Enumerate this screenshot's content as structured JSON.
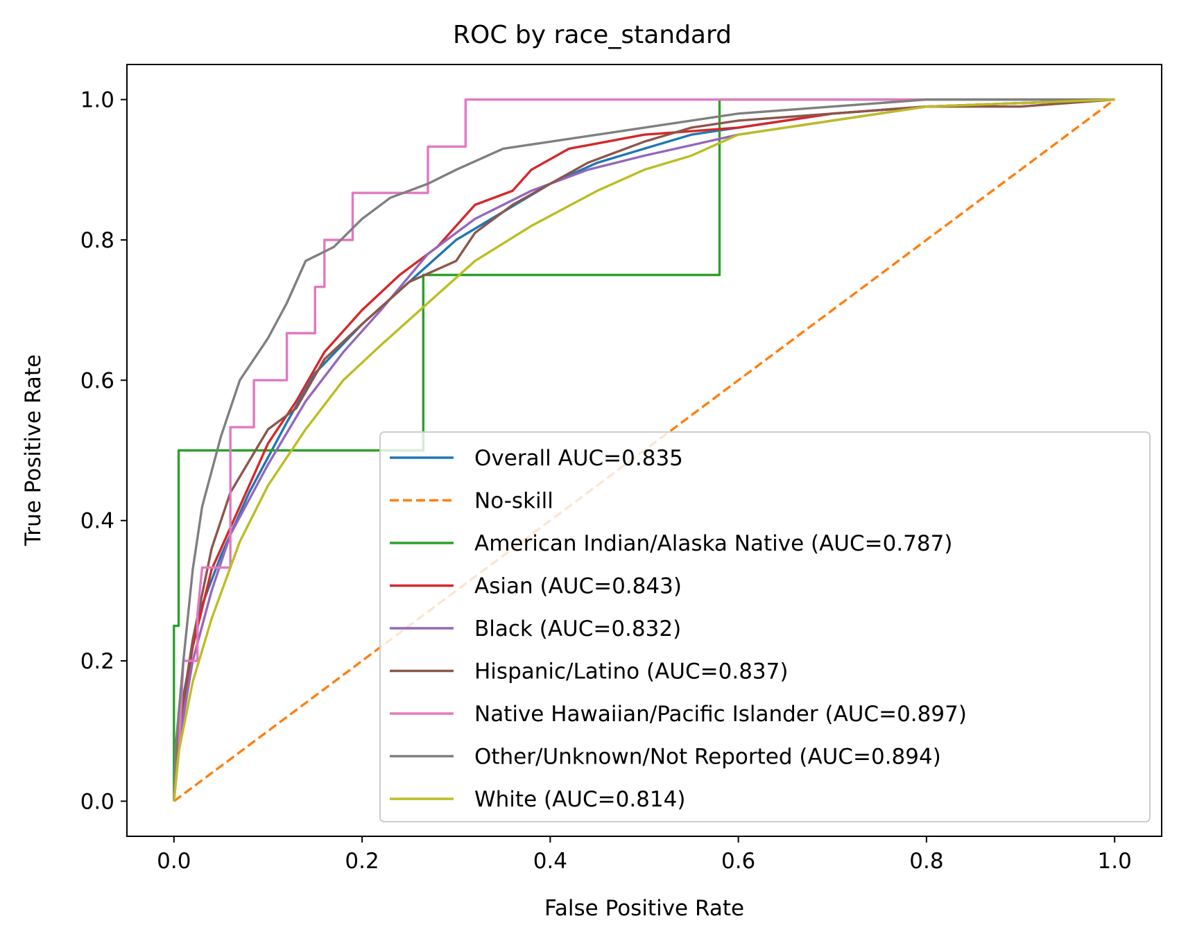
{
  "chart_data": {
    "type": "line",
    "title": "ROC by race_standard",
    "xlabel": "False Positive Rate",
    "ylabel": "True Positive Rate",
    "xlim": [
      -0.05,
      1.05
    ],
    "ylim": [
      -0.05,
      1.05
    ],
    "xticks": [
      0.0,
      0.2,
      0.4,
      0.6,
      0.8,
      1.0
    ],
    "yticks": [
      0.0,
      0.2,
      0.4,
      0.6,
      0.8,
      1.0
    ],
    "xtick_labels": [
      "0.0",
      "0.2",
      "0.4",
      "0.6",
      "0.8",
      "1.0"
    ],
    "ytick_labels": [
      "0.0",
      "0.2",
      "0.4",
      "0.6",
      "0.8",
      "1.0"
    ],
    "grid": false,
    "legend_position": "lower right",
    "series": [
      {
        "name": "Overall AUC=0.835",
        "color": "#1f77b4",
        "dash": "solid",
        "points": [
          [
            0,
            0
          ],
          [
            0.003,
            0.06
          ],
          [
            0.01,
            0.15
          ],
          [
            0.02,
            0.22
          ],
          [
            0.03,
            0.28
          ],
          [
            0.05,
            0.35
          ],
          [
            0.08,
            0.44
          ],
          [
            0.12,
            0.54
          ],
          [
            0.15,
            0.61
          ],
          [
            0.2,
            0.68
          ],
          [
            0.25,
            0.74
          ],
          [
            0.3,
            0.8
          ],
          [
            0.35,
            0.84
          ],
          [
            0.4,
            0.88
          ],
          [
            0.45,
            0.91
          ],
          [
            0.5,
            0.93
          ],
          [
            0.55,
            0.95
          ],
          [
            0.6,
            0.96
          ],
          [
            0.7,
            0.98
          ],
          [
            0.8,
            0.99
          ],
          [
            0.9,
            0.995
          ],
          [
            1.0,
            1.0
          ]
        ]
      },
      {
        "name": "No-skill",
        "color": "#ff7f0e",
        "dash": "dashed",
        "points": [
          [
            0,
            0
          ],
          [
            1,
            1
          ]
        ]
      },
      {
        "name": "American Indian/Alaska Native (AUC=0.787)",
        "color": "#2ca02c",
        "dash": "solid",
        "points": [
          [
            0,
            0
          ],
          [
            0,
            0.25
          ],
          [
            0.005,
            0.25
          ],
          [
            0.005,
            0.5
          ],
          [
            0.265,
            0.5
          ],
          [
            0.265,
            0.75
          ],
          [
            0.58,
            0.75
          ],
          [
            0.58,
            1.0
          ],
          [
            1.0,
            1.0
          ]
        ]
      },
      {
        "name": "Asian (AUC=0.843)",
        "color": "#d62728",
        "dash": "solid",
        "points": [
          [
            0,
            0
          ],
          [
            0.005,
            0.1
          ],
          [
            0.02,
            0.22
          ],
          [
            0.04,
            0.33
          ],
          [
            0.07,
            0.42
          ],
          [
            0.1,
            0.51
          ],
          [
            0.13,
            0.57
          ],
          [
            0.16,
            0.64
          ],
          [
            0.2,
            0.7
          ],
          [
            0.24,
            0.75
          ],
          [
            0.28,
            0.79
          ],
          [
            0.3,
            0.82
          ],
          [
            0.32,
            0.85
          ],
          [
            0.36,
            0.87
          ],
          [
            0.38,
            0.9
          ],
          [
            0.42,
            0.93
          ],
          [
            0.5,
            0.95
          ],
          [
            0.6,
            0.96
          ],
          [
            0.7,
            0.98
          ],
          [
            0.8,
            0.99
          ],
          [
            0.9,
            0.995
          ],
          [
            1.0,
            1.0
          ]
        ]
      },
      {
        "name": "Black (AUC=0.832)",
        "color": "#9467bd",
        "dash": "solid",
        "points": [
          [
            0,
            0
          ],
          [
            0.005,
            0.08
          ],
          [
            0.02,
            0.2
          ],
          [
            0.04,
            0.3
          ],
          [
            0.06,
            0.38
          ],
          [
            0.1,
            0.48
          ],
          [
            0.14,
            0.57
          ],
          [
            0.18,
            0.64
          ],
          [
            0.22,
            0.7
          ],
          [
            0.27,
            0.78
          ],
          [
            0.32,
            0.83
          ],
          [
            0.38,
            0.87
          ],
          [
            0.44,
            0.9
          ],
          [
            0.5,
            0.92
          ],
          [
            0.6,
            0.95
          ],
          [
            0.7,
            0.97
          ],
          [
            0.8,
            0.99
          ],
          [
            0.9,
            0.995
          ],
          [
            1.0,
            1.0
          ]
        ]
      },
      {
        "name": "Hispanic/Latino (AUC=0.837)",
        "color": "#8c564b",
        "dash": "solid",
        "points": [
          [
            0,
            0
          ],
          [
            0.005,
            0.1
          ],
          [
            0.02,
            0.23
          ],
          [
            0.04,
            0.36
          ],
          [
            0.06,
            0.44
          ],
          [
            0.1,
            0.53
          ],
          [
            0.13,
            0.56
          ],
          [
            0.16,
            0.63
          ],
          [
            0.2,
            0.68
          ],
          [
            0.25,
            0.74
          ],
          [
            0.3,
            0.77
          ],
          [
            0.32,
            0.81
          ],
          [
            0.36,
            0.85
          ],
          [
            0.4,
            0.88
          ],
          [
            0.44,
            0.91
          ],
          [
            0.5,
            0.94
          ],
          [
            0.55,
            0.96
          ],
          [
            0.6,
            0.97
          ],
          [
            0.7,
            0.98
          ],
          [
            0.8,
            0.99
          ],
          [
            0.9,
            0.99
          ],
          [
            1.0,
            1.0
          ]
        ]
      },
      {
        "name": "Native Hawaiian/Pacific Islander (AUC=0.897)",
        "color": "#e377c2",
        "dash": "solid",
        "points": [
          [
            0,
            0
          ],
          [
            0.005,
            0.067
          ],
          [
            0.01,
            0.2
          ],
          [
            0.025,
            0.2
          ],
          [
            0.025,
            0.267
          ],
          [
            0.03,
            0.333
          ],
          [
            0.06,
            0.333
          ],
          [
            0.06,
            0.533
          ],
          [
            0.085,
            0.533
          ],
          [
            0.085,
            0.6
          ],
          [
            0.12,
            0.6
          ],
          [
            0.12,
            0.667
          ],
          [
            0.15,
            0.667
          ],
          [
            0.15,
            0.733
          ],
          [
            0.16,
            0.733
          ],
          [
            0.16,
            0.8
          ],
          [
            0.19,
            0.8
          ],
          [
            0.19,
            0.867
          ],
          [
            0.27,
            0.867
          ],
          [
            0.27,
            0.933
          ],
          [
            0.31,
            0.933
          ],
          [
            0.31,
            1.0
          ],
          [
            1.0,
            1.0
          ]
        ]
      },
      {
        "name": "Other/Unknown/Not Reported (AUC=0.894)",
        "color": "#7f7f7f",
        "dash": "solid",
        "points": [
          [
            0,
            0
          ],
          [
            0.002,
            0.08
          ],
          [
            0.01,
            0.2
          ],
          [
            0.02,
            0.33
          ],
          [
            0.03,
            0.42
          ],
          [
            0.05,
            0.52
          ],
          [
            0.07,
            0.6
          ],
          [
            0.1,
            0.66
          ],
          [
            0.12,
            0.71
          ],
          [
            0.14,
            0.77
          ],
          [
            0.17,
            0.79
          ],
          [
            0.2,
            0.83
          ],
          [
            0.23,
            0.86
          ],
          [
            0.27,
            0.88
          ],
          [
            0.3,
            0.9
          ],
          [
            0.35,
            0.93
          ],
          [
            0.4,
            0.94
          ],
          [
            0.5,
            0.96
          ],
          [
            0.6,
            0.98
          ],
          [
            0.7,
            0.99
          ],
          [
            0.8,
            1.0
          ],
          [
            1.0,
            1.0
          ]
        ]
      },
      {
        "name": "White (AUC=0.814)",
        "color": "#bcbd22",
        "dash": "solid",
        "points": [
          [
            0,
            0
          ],
          [
            0.005,
            0.07
          ],
          [
            0.02,
            0.17
          ],
          [
            0.04,
            0.26
          ],
          [
            0.07,
            0.37
          ],
          [
            0.1,
            0.45
          ],
          [
            0.14,
            0.53
          ],
          [
            0.18,
            0.6
          ],
          [
            0.22,
            0.65
          ],
          [
            0.27,
            0.71
          ],
          [
            0.32,
            0.77
          ],
          [
            0.38,
            0.82
          ],
          [
            0.45,
            0.87
          ],
          [
            0.5,
            0.9
          ],
          [
            0.55,
            0.92
          ],
          [
            0.6,
            0.95
          ],
          [
            0.7,
            0.97
          ],
          [
            0.8,
            0.99
          ],
          [
            0.9,
            0.995
          ],
          [
            1.0,
            1.0
          ]
        ]
      }
    ]
  }
}
